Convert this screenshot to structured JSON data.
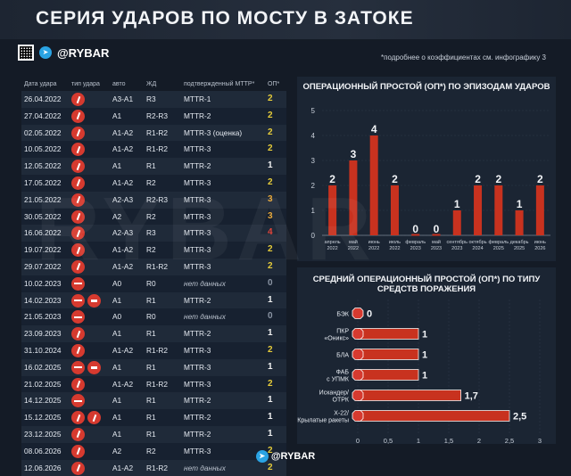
{
  "header": {
    "title": "СЕРИЯ УДАРОВ ПО МОСТУ В ЗАТОКЕ"
  },
  "brand": {
    "handle": "@RYBAR",
    "footer": "@RYBAR"
  },
  "note": "*подробнее о коэффициентах см. инфографику 3",
  "table": {
    "headers": [
      "Дата удара",
      "тип удара",
      "авто",
      "ЖД",
      "подтвержденный МТТР*",
      "ОП*"
    ],
    "rows": [
      {
        "date": "26.04.2022",
        "icons": [
          "ms"
        ],
        "auto": "A3-A1",
        "rail": "R3",
        "mttr": "MTTR-1",
        "op": "2"
      },
      {
        "date": "27.04.2022",
        "icons": [
          "ms"
        ],
        "auto": "A1",
        "rail": "R2-R3",
        "mttr": "MTTR-2",
        "op": "2"
      },
      {
        "date": "02.05.2022",
        "icons": [
          "ms"
        ],
        "auto": "A1-A2",
        "rail": "R1-R2",
        "mttr": "MTTR-3 (оценка)",
        "op": "2"
      },
      {
        "date": "10.05.2022",
        "icons": [
          "ms"
        ],
        "auto": "A1-A2",
        "rail": "R1-R2",
        "mttr": "MTTR-3",
        "op": "2"
      },
      {
        "date": "12.05.2022",
        "icons": [
          "ms"
        ],
        "auto": "A1",
        "rail": "R1",
        "mttr": "MTTR-2",
        "op": "1"
      },
      {
        "date": "17.05.2022",
        "icons": [
          "ms"
        ],
        "auto": "A1-A2",
        "rail": "R2",
        "mttr": "MTTR-3",
        "op": "2"
      },
      {
        "date": "21.05.2022",
        "icons": [
          "ms"
        ],
        "auto": "A2-A3",
        "rail": "R2-R3",
        "mttr": "MTTR-3",
        "op": "3"
      },
      {
        "date": "30.05.2022",
        "icons": [
          "ms"
        ],
        "auto": "A2",
        "rail": "R2",
        "mttr": "MTTR-3",
        "op": "3"
      },
      {
        "date": "16.06.2022",
        "icons": [
          "ms"
        ],
        "auto": "A2-A3",
        "rail": "R3",
        "mttr": "MTTR-3",
        "op": "4"
      },
      {
        "date": "19.07.2022",
        "icons": [
          "ms"
        ],
        "auto": "A1-A2",
        "rail": "R2",
        "mttr": "MTTR-3",
        "op": "2"
      },
      {
        "date": "29.07.2022",
        "icons": [
          "ms"
        ],
        "auto": "A1-A2",
        "rail": "R1-R2",
        "mttr": "MTTR-3",
        "op": "2"
      },
      {
        "date": "10.02.2023",
        "icons": [
          "bar"
        ],
        "auto": "A0",
        "rail": "R0",
        "mttr": "нет данных",
        "op": "0"
      },
      {
        "date": "14.02.2023",
        "icons": [
          "bar",
          "gr"
        ],
        "auto": "A1",
        "rail": "R1",
        "mttr": "MTTR-2",
        "op": "1"
      },
      {
        "date": "21.05.2023",
        "icons": [
          "bar"
        ],
        "auto": "A0",
        "rail": "R0",
        "mttr": "нет данных",
        "op": "0"
      },
      {
        "date": "23.09.2023",
        "icons": [
          "ms"
        ],
        "auto": "A1",
        "rail": "R1",
        "mttr": "MTTR-2",
        "op": "1"
      },
      {
        "date": "31.10.2024",
        "icons": [
          "ms"
        ],
        "auto": "A1-A2",
        "rail": "R1-R2",
        "mttr": "MTTR-3",
        "op": "2"
      },
      {
        "date": "16.02.2025",
        "icons": [
          "bar",
          "gr"
        ],
        "auto": "A1",
        "rail": "R1",
        "mttr": "MTTR-3",
        "op": "1"
      },
      {
        "date": "21.02.2025",
        "icons": [
          "ms"
        ],
        "auto": "A1-A2",
        "rail": "R1-R2",
        "mttr": "MTTR-3",
        "op": "2"
      },
      {
        "date": "14.12.2025",
        "icons": [
          "bar"
        ],
        "auto": "A1",
        "rail": "R1",
        "mttr": "MTTR-2",
        "op": "1"
      },
      {
        "date": "15.12.2025",
        "icons": [
          "ms",
          "ms"
        ],
        "auto": "A1",
        "rail": "R1",
        "mttr": "MTTR-2",
        "op": "1"
      },
      {
        "date": "23.12.2025",
        "icons": [
          "ms"
        ],
        "auto": "A1",
        "rail": "R1",
        "mttr": "MTTR-2",
        "op": "1"
      },
      {
        "date": "08.06.2026",
        "icons": [
          "ms"
        ],
        "auto": "A2",
        "rail": "R2",
        "mttr": "MTTR-3",
        "op": "2"
      },
      {
        "date": "12.06.2026",
        "icons": [
          "ms"
        ],
        "auto": "A1-A2",
        "rail": "R1-R2",
        "mttr": "нет данных",
        "op": "2"
      }
    ]
  },
  "colors": {
    "accent": "#d63a2f",
    "op1": "#f0f0f0",
    "op2": "#e6cc3a",
    "op3": "#e8a838",
    "op4": "#e5453a",
    "op0": "#8a94a3"
  },
  "chart_data": [
    {
      "type": "bar",
      "title": "ОПЕРАЦИОННЫЙ ПРОСТОЙ (ОП*) ПО ЭПИЗОДАМ УДАРОВ",
      "categories": [
        "апрель 2022",
        "май 2022",
        "июнь 2022",
        "июль 2022",
        "февраль 2023",
        "май 2023",
        "сентябрь 2023",
        "октябрь 2024",
        "февраль 2025",
        "декабрь 2025",
        "июнь 2026"
      ],
      "values": [
        2,
        3,
        4,
        2,
        0,
        0,
        1,
        2,
        2,
        1,
        2
      ],
      "ylim": [
        0,
        5
      ],
      "yticks": [
        "0",
        "1",
        "2",
        "3",
        "4",
        "5"
      ],
      "grid": true
    },
    {
      "type": "bar",
      "orientation": "horizontal",
      "title": "СРЕДНИЙ ОПЕРАЦИОННЫЙ ПРОСТОЙ (ОП*) ПО ТИПУ СРЕДСТВ ПОРАЖЕНИЯ",
      "categories": [
        "БЭК",
        "ПКР «Оникс»",
        "БЛА",
        "ФАБ с УПМК",
        "Искандер/ ОТРК",
        "Х-22/ Крылатые ракеты"
      ],
      "values": [
        0,
        1,
        1,
        1,
        1.7,
        2.5
      ],
      "labels": [
        "0",
        "1",
        "1",
        "1",
        "1,7",
        "2,5"
      ],
      "xlim": [
        0,
        3
      ],
      "xticks": [
        "0",
        "0,5",
        "1",
        "1,5",
        "2",
        "2,5",
        "3"
      ],
      "grid": true
    }
  ]
}
